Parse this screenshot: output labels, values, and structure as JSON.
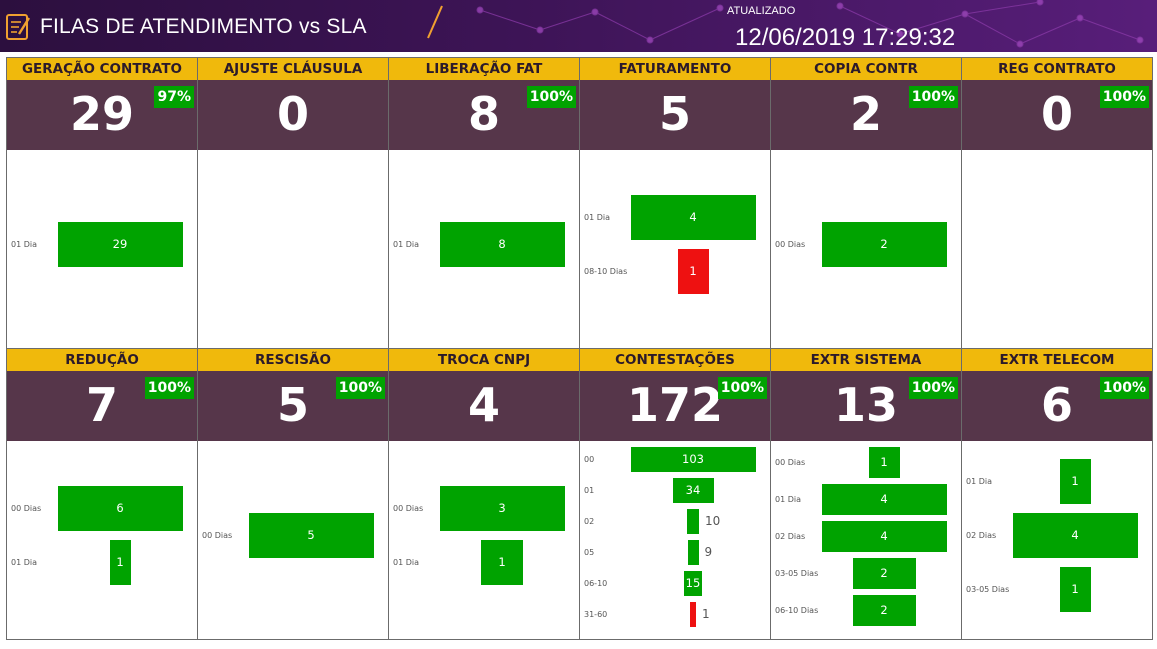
{
  "header": {
    "title": "FILAS DE ATENDIMENTO vs SLA",
    "updated_label": "ATUALIZADO",
    "updated_value": "12/06/2019 17:29:32",
    "icon": "notepad-pencil-icon"
  },
  "colors": {
    "title_bar": "#f0b90c",
    "kpi_background": "#56364a",
    "within_sla": "#00a300",
    "overdue": "#ee1111",
    "header_background": "#3d1456"
  },
  "queues": [
    {
      "title": "GERAÇÃO CONTRATO",
      "count": "29",
      "sla": "97%",
      "chart_data": {
        "type": "bar",
        "categories": [
          "01 Dia"
        ],
        "values": [
          29
        ],
        "colors": [
          "green"
        ]
      }
    },
    {
      "title": "AJUSTE CLÁUSULA",
      "count": "0",
      "sla": "",
      "chart_data": {
        "type": "bar",
        "categories": [],
        "values": [],
        "colors": []
      }
    },
    {
      "title": "LIBERAÇÃO FAT",
      "count": "8",
      "sla": "100%",
      "chart_data": {
        "type": "bar",
        "categories": [
          "01 Dia"
        ],
        "values": [
          8
        ],
        "colors": [
          "green"
        ]
      }
    },
    {
      "title": "FATURAMENTO",
      "count": "5",
      "sla": "",
      "chart_data": {
        "type": "bar",
        "categories": [
          "01 Dia",
          "08-10 Dias"
        ],
        "values": [
          4,
          1
        ],
        "colors": [
          "green",
          "red"
        ]
      }
    },
    {
      "title": "COPIA CONTR",
      "count": "2",
      "sla": "100%",
      "chart_data": {
        "type": "bar",
        "categories": [
          "00 Dias"
        ],
        "values": [
          2
        ],
        "colors": [
          "green"
        ]
      }
    },
    {
      "title": "REG CONTRATO",
      "count": "0",
      "sla": "100%",
      "chart_data": {
        "type": "bar",
        "categories": [],
        "values": [],
        "colors": []
      }
    },
    {
      "title": "REDUÇÃO",
      "count": "7",
      "sla": "100%",
      "chart_data": {
        "type": "bar",
        "categories": [
          "00 Dias",
          "01 Dia"
        ],
        "values": [
          6,
          1
        ],
        "colors": [
          "green",
          "green"
        ]
      }
    },
    {
      "title": "RESCISÃO",
      "count": "5",
      "sla": "100%",
      "chart_data": {
        "type": "bar",
        "categories": [
          "00 Dias"
        ],
        "values": [
          5
        ],
        "colors": [
          "green"
        ]
      }
    },
    {
      "title": "TROCA CNPJ",
      "count": "4",
      "sla": "",
      "chart_data": {
        "type": "bar",
        "categories": [
          "00 Dias",
          "01 Dia"
        ],
        "values": [
          3,
          1
        ],
        "colors": [
          "green",
          "green"
        ]
      }
    },
    {
      "title": "CONTESTAÇÕES",
      "count": "172",
      "sla": "100%",
      "chart_data": {
        "type": "bar",
        "categories": [
          "00",
          "01",
          "02",
          "05",
          "06-10",
          "31-60"
        ],
        "values": [
          103,
          34,
          10,
          9,
          15,
          1
        ],
        "colors": [
          "green",
          "green",
          "green",
          "green",
          "green",
          "red"
        ]
      }
    },
    {
      "title": "EXTR SISTEMA",
      "count": "13",
      "sla": "100%",
      "chart_data": {
        "type": "bar",
        "categories": [
          "00 Dias",
          "01 Dia",
          "02 Dias",
          "03-05 Dias",
          "06-10 Dias"
        ],
        "values": [
          1,
          4,
          4,
          2,
          2
        ],
        "colors": [
          "green",
          "green",
          "green",
          "green",
          "green"
        ]
      }
    },
    {
      "title": "EXTR TELECOM",
      "count": "6",
      "sla": "100%",
      "chart_data": {
        "type": "bar",
        "categories": [
          "01 Dia",
          "02 Dias",
          "03-05 Dias"
        ],
        "values": [
          1,
          4,
          1
        ],
        "colors": [
          "green",
          "green",
          "green"
        ]
      }
    }
  ]
}
